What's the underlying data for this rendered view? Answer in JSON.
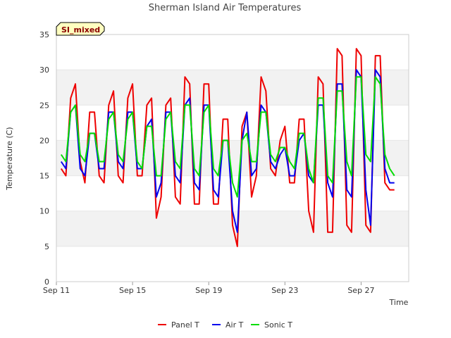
{
  "chart_data": {
    "type": "line",
    "title": "Sherman Island Air Temperatures",
    "xlabel": "Time",
    "ylabel": "Temperature (C)",
    "ylim": [
      0,
      35
    ],
    "yticks": [
      0,
      5,
      10,
      15,
      20,
      25,
      30,
      35
    ],
    "xlim": [
      "2023-09-11",
      "2023-09-29T12:00"
    ],
    "xticks": [
      {
        "date": "2023-09-11",
        "label": "Sep 11"
      },
      {
        "date": "2023-09-15",
        "label": "Sep 15"
      },
      {
        "date": "2023-09-19",
        "label": "Sep 19"
      },
      {
        "date": "2023-09-23",
        "label": "Sep 23"
      },
      {
        "date": "2023-09-27",
        "label": "Sep 27"
      }
    ],
    "background_bands": "alternating light grey",
    "legend": "bottom-center",
    "badge": "SI_mixed",
    "series": [
      {
        "name": "Panel T",
        "color": "#ee0000",
        "x": [
          "2023-09-11T06:00",
          "2023-09-11T12:00",
          "2023-09-11T18:00",
          "2023-09-12T00:00",
          "2023-09-12T06:00",
          "2023-09-12T12:00",
          "2023-09-12T18:00",
          "2023-09-13T00:00",
          "2023-09-13T06:00",
          "2023-09-13T12:00",
          "2023-09-13T18:00",
          "2023-09-14T00:00",
          "2023-09-14T06:00",
          "2023-09-14T12:00",
          "2023-09-14T18:00",
          "2023-09-15T00:00",
          "2023-09-15T06:00",
          "2023-09-15T12:00",
          "2023-09-15T18:00",
          "2023-09-16T00:00",
          "2023-09-16T06:00",
          "2023-09-16T12:00",
          "2023-09-16T18:00",
          "2023-09-17T00:00",
          "2023-09-17T06:00",
          "2023-09-17T12:00",
          "2023-09-17T18:00",
          "2023-09-18T00:00",
          "2023-09-18T06:00",
          "2023-09-18T12:00",
          "2023-09-18T18:00",
          "2023-09-19T00:00",
          "2023-09-19T06:00",
          "2023-09-19T12:00",
          "2023-09-19T18:00",
          "2023-09-20T00:00",
          "2023-09-20T06:00",
          "2023-09-20T12:00",
          "2023-09-20T18:00",
          "2023-09-21T00:00",
          "2023-09-21T06:00",
          "2023-09-21T12:00",
          "2023-09-21T18:00",
          "2023-09-22T00:00",
          "2023-09-22T06:00",
          "2023-09-22T12:00",
          "2023-09-22T18:00",
          "2023-09-23T00:00",
          "2023-09-23T06:00",
          "2023-09-23T12:00",
          "2023-09-23T18:00",
          "2023-09-24T00:00",
          "2023-09-24T06:00",
          "2023-09-24T12:00",
          "2023-09-24T18:00",
          "2023-09-25T00:00",
          "2023-09-25T06:00",
          "2023-09-25T12:00",
          "2023-09-25T18:00",
          "2023-09-26T00:00",
          "2023-09-26T06:00",
          "2023-09-26T12:00",
          "2023-09-26T18:00",
          "2023-09-27T00:00",
          "2023-09-27T06:00",
          "2023-09-27T12:00",
          "2023-09-27T18:00",
          "2023-09-28T00:00",
          "2023-09-28T06:00",
          "2023-09-28T12:00",
          "2023-09-28T18:00"
        ],
        "y": [
          16,
          15,
          26,
          28,
          17,
          14,
          24,
          24,
          15,
          14,
          25,
          27,
          15,
          14,
          26,
          28,
          15,
          15,
          25,
          26,
          9,
          12,
          25,
          26,
          12,
          11,
          29,
          28,
          11,
          11,
          28,
          28,
          11,
          11,
          23,
          23,
          8,
          5,
          22,
          24,
          12,
          15,
          29,
          27,
          16,
          15,
          20,
          22,
          14,
          14,
          23,
          23,
          10,
          7,
          29,
          28,
          7,
          7,
          33,
          32,
          8,
          7,
          33,
          32,
          8,
          7,
          32,
          32,
          14,
          13,
          13
        ]
      },
      {
        "name": "Air T",
        "color": "#0000ee",
        "x": [
          "2023-09-11T06:00",
          "2023-09-11T12:00",
          "2023-09-11T18:00",
          "2023-09-12T00:00",
          "2023-09-12T06:00",
          "2023-09-12T12:00",
          "2023-09-12T18:00",
          "2023-09-13T00:00",
          "2023-09-13T06:00",
          "2023-09-13T12:00",
          "2023-09-13T18:00",
          "2023-09-14T00:00",
          "2023-09-14T06:00",
          "2023-09-14T12:00",
          "2023-09-14T18:00",
          "2023-09-15T00:00",
          "2023-09-15T06:00",
          "2023-09-15T12:00",
          "2023-09-15T18:00",
          "2023-09-16T00:00",
          "2023-09-16T06:00",
          "2023-09-16T12:00",
          "2023-09-16T18:00",
          "2023-09-17T00:00",
          "2023-09-17T06:00",
          "2023-09-17T12:00",
          "2023-09-17T18:00",
          "2023-09-18T00:00",
          "2023-09-18T06:00",
          "2023-09-18T12:00",
          "2023-09-18T18:00",
          "2023-09-19T00:00",
          "2023-09-19T06:00",
          "2023-09-19T12:00",
          "2023-09-19T18:00",
          "2023-09-20T00:00",
          "2023-09-20T06:00",
          "2023-09-20T12:00",
          "2023-09-20T18:00",
          "2023-09-21T00:00",
          "2023-09-21T06:00",
          "2023-09-21T12:00",
          "2023-09-21T18:00",
          "2023-09-22T00:00",
          "2023-09-22T06:00",
          "2023-09-22T12:00",
          "2023-09-22T18:00",
          "2023-09-23T00:00",
          "2023-09-23T06:00",
          "2023-09-23T12:00",
          "2023-09-23T18:00",
          "2023-09-24T00:00",
          "2023-09-24T06:00",
          "2023-09-24T12:00",
          "2023-09-24T18:00",
          "2023-09-25T00:00",
          "2023-09-25T06:00",
          "2023-09-25T12:00",
          "2023-09-25T18:00",
          "2023-09-26T00:00",
          "2023-09-26T06:00",
          "2023-09-26T12:00",
          "2023-09-26T18:00",
          "2023-09-27T00:00",
          "2023-09-27T06:00",
          "2023-09-27T12:00",
          "2023-09-27T18:00",
          "2023-09-28T00:00",
          "2023-09-28T06:00",
          "2023-09-28T12:00",
          "2023-09-28T18:00"
        ],
        "y": [
          17,
          16,
          24,
          25,
          16,
          15,
          21,
          21,
          16,
          16,
          24,
          24,
          17,
          16,
          24,
          24,
          16,
          16,
          22,
          23,
          12,
          14,
          24,
          24,
          15,
          14,
          25,
          26,
          14,
          13,
          25,
          25,
          13,
          12,
          20,
          20,
          10,
          7,
          20,
          24,
          15,
          16,
          25,
          24,
          17,
          16,
          18,
          19,
          15,
          15,
          20,
          21,
          15,
          14,
          25,
          25,
          14,
          12,
          28,
          28,
          13,
          12,
          30,
          29,
          13,
          8,
          30,
          29,
          16,
          14,
          14
        ]
      },
      {
        "name": "Sonic T",
        "color": "#00dd00",
        "x": [
          "2023-09-11T06:00",
          "2023-09-11T12:00",
          "2023-09-11T18:00",
          "2023-09-12T00:00",
          "2023-09-12T06:00",
          "2023-09-12T12:00",
          "2023-09-12T18:00",
          "2023-09-13T00:00",
          "2023-09-13T06:00",
          "2023-09-13T12:00",
          "2023-09-13T18:00",
          "2023-09-14T00:00",
          "2023-09-14T06:00",
          "2023-09-14T12:00",
          "2023-09-14T18:00",
          "2023-09-15T00:00",
          "2023-09-15T06:00",
          "2023-09-15T12:00",
          "2023-09-15T18:00",
          "2023-09-16T00:00",
          "2023-09-16T06:00",
          "2023-09-16T12:00",
          "2023-09-16T18:00",
          "2023-09-17T00:00",
          "2023-09-17T06:00",
          "2023-09-17T12:00",
          "2023-09-17T18:00",
          "2023-09-18T00:00",
          "2023-09-18T06:00",
          "2023-09-18T12:00",
          "2023-09-18T18:00",
          "2023-09-19T00:00",
          "2023-09-19T06:00",
          "2023-09-19T12:00",
          "2023-09-19T18:00",
          "2023-09-20T00:00",
          "2023-09-20T06:00",
          "2023-09-20T12:00",
          "2023-09-20T18:00",
          "2023-09-21T00:00",
          "2023-09-21T06:00",
          "2023-09-21T12:00",
          "2023-09-21T18:00",
          "2023-09-22T00:00",
          "2023-09-22T06:00",
          "2023-09-22T12:00",
          "2023-09-22T18:00",
          "2023-09-23T00:00",
          "2023-09-23T06:00",
          "2023-09-23T12:00",
          "2023-09-23T18:00",
          "2023-09-24T00:00",
          "2023-09-24T06:00",
          "2023-09-24T12:00",
          "2023-09-24T18:00",
          "2023-09-25T00:00",
          "2023-09-25T06:00",
          "2023-09-25T12:00",
          "2023-09-25T18:00",
          "2023-09-26T00:00",
          "2023-09-26T06:00",
          "2023-09-26T12:00",
          "2023-09-26T18:00",
          "2023-09-27T00:00",
          "2023-09-27T06:00",
          "2023-09-27T12:00",
          "2023-09-27T18:00",
          "2023-09-28T00:00",
          "2023-09-28T06:00",
          "2023-09-28T12:00",
          "2023-09-28T18:00"
        ],
        "y": [
          18,
          17,
          24,
          25,
          18,
          17,
          21,
          21,
          17,
          17,
          23,
          24,
          18,
          17,
          23,
          24,
          17,
          16,
          22,
          22,
          15,
          15,
          23,
          24,
          17,
          16,
          25,
          25,
          16,
          15,
          24,
          25,
          16,
          15,
          20,
          20,
          14,
          12,
          20,
          21,
          17,
          17,
          24,
          24,
          18,
          17,
          19,
          19,
          17,
          16,
          21,
          21,
          16,
          14,
          26,
          26,
          15,
          14,
          27,
          27,
          17,
          15,
          29,
          29,
          18,
          17,
          29,
          28,
          18,
          16,
          15
        ]
      }
    ]
  }
}
